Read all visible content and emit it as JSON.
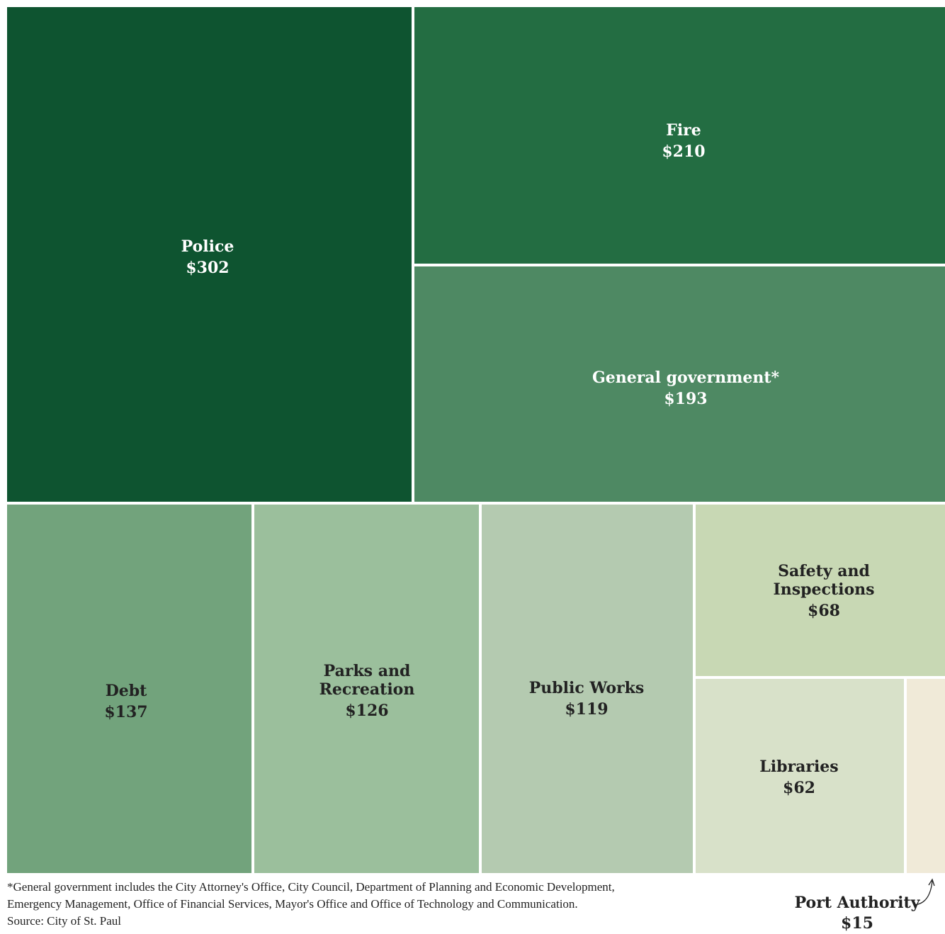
{
  "chart_data": {
    "type": "treemap",
    "items": [
      {
        "label_lines": [
          "Police"
        ],
        "value": 302,
        "display": "$302",
        "color": "#0e5430",
        "text_color": "#ffffff"
      },
      {
        "label_lines": [
          "Fire"
        ],
        "value": 210,
        "display": "$210",
        "color": "#236d42",
        "text_color": "#ffffff"
      },
      {
        "label_lines": [
          "General government*"
        ],
        "value": 193,
        "display": "$193",
        "color": "#4e8963",
        "text_color": "#ffffff"
      },
      {
        "label_lines": [
          "Debt"
        ],
        "value": 137,
        "display": "$137",
        "color": "#72a37c",
        "text_color": "#222222"
      },
      {
        "label_lines": [
          "Parks and",
          "Recreation"
        ],
        "value": 126,
        "display": "$126",
        "color": "#9bbf9c",
        "text_color": "#222222"
      },
      {
        "label_lines": [
          "Public Works"
        ],
        "value": 119,
        "display": "$119",
        "color": "#b4cab0",
        "text_color": "#222222"
      },
      {
        "label_lines": [
          "Safety and",
          "Inspections"
        ],
        "value": 68,
        "display": "$68",
        "color": "#c8d8b4",
        "text_color": "#222222"
      },
      {
        "label_lines": [
          "Libraries"
        ],
        "value": 62,
        "display": "$62",
        "color": "#d8e1c9",
        "text_color": "#222222"
      },
      {
        "label_lines": [
          "Port Authority"
        ],
        "value": 15,
        "display": "$15",
        "color": "#f0ead8",
        "text_color": "#222222"
      }
    ]
  },
  "footnote": {
    "line1": "*General government includes the City Attorney's Office, City Council, Department of Planning and Economic Development,",
    "line2": "Emergency Management, Office of Financial Services, Mayor's Office and Office of Technology and Communication.",
    "line3": "Source: City of St. Paul"
  },
  "callout": {
    "label": "Port Authority",
    "value": "$15"
  }
}
